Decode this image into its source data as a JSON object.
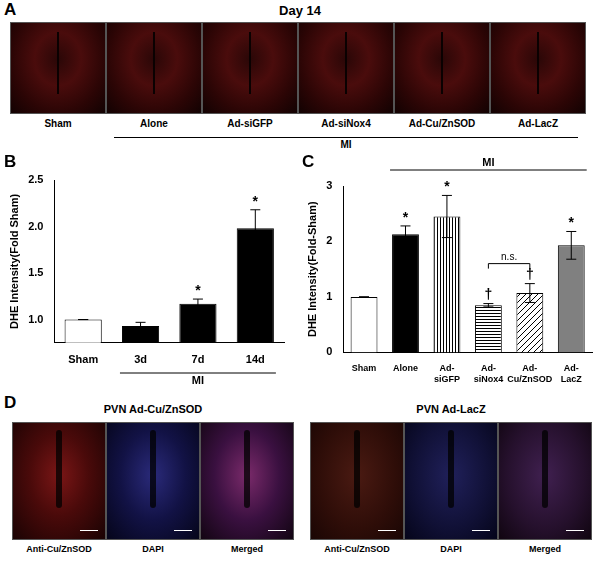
{
  "figure": {
    "panel_a": {
      "label": "A",
      "title": "Day 14",
      "images": [
        "Sham",
        "Alone",
        "Ad-siGFP",
        "Ad-siNox4",
        "Ad-Cu/ZnSOD",
        "Ad-LacZ"
      ],
      "group": {
        "text": "MI",
        "images": [
          "Alone",
          "Ad-siGFP",
          "Ad-siNox4",
          "Ad-Cu/ZnSOD",
          "Ad-LacZ"
        ]
      }
    },
    "panel_d": {
      "label": "D",
      "groups": [
        {
          "title": "PVN Ad-Cu/ZnSOD",
          "images": [
            "Anti-Cu/ZnSOD",
            "DAPI",
            "Merged"
          ]
        },
        {
          "title": "PVN Ad-LacZ",
          "images": [
            "Anti-Cu/ZnSOD",
            "DAPI",
            "Merged"
          ]
        }
      ]
    }
  },
  "chart_data": [
    {
      "panel": "B",
      "type": "bar",
      "categories": [
        "Sham",
        "3d",
        "7d",
        "14d"
      ],
      "values": [
        1.0,
        0.93,
        1.17,
        1.98
      ],
      "errors": [
        0,
        0.04,
        0.05,
        0.2
      ],
      "colors": [
        "#ffffff",
        "#000000",
        "#000000",
        "#000000"
      ],
      "y_label": "DHE Intensity(Fold Sham)",
      "ylim": [
        0.75,
        2.5
      ],
      "yticks": [
        {
          "value": 1,
          "label": "1.0"
        },
        {
          "value": 1.5,
          "label": "1.5"
        },
        {
          "value": 2,
          "label": "2.0"
        },
        {
          "value": 2.5,
          "label": "2.5"
        }
      ],
      "grid": false,
      "bar_marks": [
        null,
        null,
        "*",
        "*"
      ],
      "group": {
        "text": "MI",
        "categories": [
          "3d",
          "7d",
          "14d"
        ]
      }
    },
    {
      "panel": "C",
      "type": "bar",
      "categories": [
        "Sham",
        "Alone",
        "Ad-siGFP",
        "Ad-siNox4",
        "Ad-Cu/ZnSOD",
        "Ad-LacZ"
      ],
      "values": [
        1.0,
        2.13,
        2.45,
        0.85,
        1.07,
        1.93
      ],
      "errors": [
        0,
        0.15,
        0.38,
        0.03,
        0.17,
        0.25
      ],
      "colors": [
        "#ffffff",
        "#000000",
        "#ffffff",
        "#ffffff",
        "#ffffff",
        "#808080"
      ],
      "y_label": "DHE Intensity(Fold-Sham)",
      "ylim": [
        0,
        3
      ],
      "yticks": [
        0,
        1,
        2,
        3
      ],
      "grid": false,
      "bar_marks": [
        null,
        "*",
        "*",
        "†",
        "†",
        "*"
      ],
      "group": {
        "text": "MI",
        "categories": [
          "Alone",
          "Ad-siGFP",
          "Ad-siNox4",
          "Ad-Cu/ZnSOD",
          "Ad-LacZ"
        ]
      },
      "annotations": [
        {
          "text": "n.s.",
          "between": [
            "Ad-siNox4",
            "Ad-Cu/ZnSOD"
          ]
        }
      ]
    }
  ]
}
